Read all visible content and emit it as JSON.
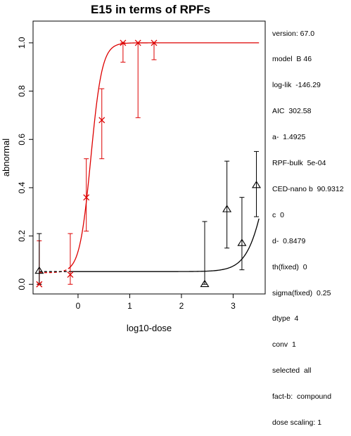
{
  "chart_data": {
    "type": "scatter",
    "title": "E15 in terms of RPFs",
    "xlabel": "log10-dose",
    "ylabel": "abnormal",
    "xlim": [
      -0.87,
      3.62
    ],
    "ylim": [
      -0.04,
      1.09
    ],
    "xticks": [
      "0",
      "1",
      "2",
      "3"
    ],
    "xtick_values": [
      0,
      1,
      2,
      3
    ],
    "yticks": [
      "0.0",
      "0.2",
      "0.4",
      "0.6",
      "0.8",
      "1.0"
    ],
    "ytick_values": [
      0,
      0.2,
      0.4,
      0.6,
      0.8,
      1.0
    ],
    "grid": false,
    "series": [
      {
        "marker": "x",
        "color": "#dd0000",
        "points": [
          {
            "x": -0.75,
            "y": 0.0,
            "lo": 0.0,
            "hi": 0.18
          },
          {
            "x": -0.15,
            "y": 0.04,
            "lo": 0.0,
            "hi": 0.21
          },
          {
            "x": 0.16,
            "y": 0.36,
            "lo": 0.22,
            "hi": 0.52
          },
          {
            "x": 0.46,
            "y": 0.68,
            "lo": 0.52,
            "hi": 0.81
          },
          {
            "x": 0.87,
            "y": 1.0,
            "lo": 0.92,
            "hi": 1.0
          },
          {
            "x": 1.16,
            "y": 1.0,
            "lo": 0.69,
            "hi": 1.0
          },
          {
            "x": 1.47,
            "y": 1.0,
            "lo": 0.93,
            "hi": 1.0
          }
        ],
        "fit": {
          "bottom": 0.0479,
          "top": 1.0,
          "ec50": 0.248,
          "slope": 4.0
        }
      },
      {
        "marker": "triangle",
        "color": "#000000",
        "points": [
          {
            "x": -0.75,
            "y": 0.055,
            "lo": 0.0,
            "hi": 0.21
          },
          {
            "x": 2.45,
            "y": 0.0,
            "lo": 0.0,
            "hi": 0.26
          },
          {
            "x": 2.88,
            "y": 0.31,
            "lo": 0.15,
            "hi": 0.51
          },
          {
            "x": 3.17,
            "y": 0.17,
            "lo": 0.06,
            "hi": 0.36
          },
          {
            "x": 3.45,
            "y": 0.41,
            "lo": 0.28,
            "hi": 0.55
          }
        ],
        "fit": {
          "bottom": 0.0526,
          "top": 1.0,
          "ec50": 3.74,
          "slope": 2.17
        }
      }
    ]
  },
  "info_lines": [
    "version: 67.0",
    "model  B 46",
    "log-lik  -146.29",
    "AIC  302.58",
    "a-  1.4925",
    "RPF-bulk  5e-04",
    "CED-nano b  90.9312",
    "c  0",
    "d-  0.8479",
    "th(fixed)  0",
    "sigma(fixed)  0.25",
    "dtype  4",
    "conv  1",
    "selected  all",
    "fact-b:  compound",
    "dose scaling: 1"
  ]
}
